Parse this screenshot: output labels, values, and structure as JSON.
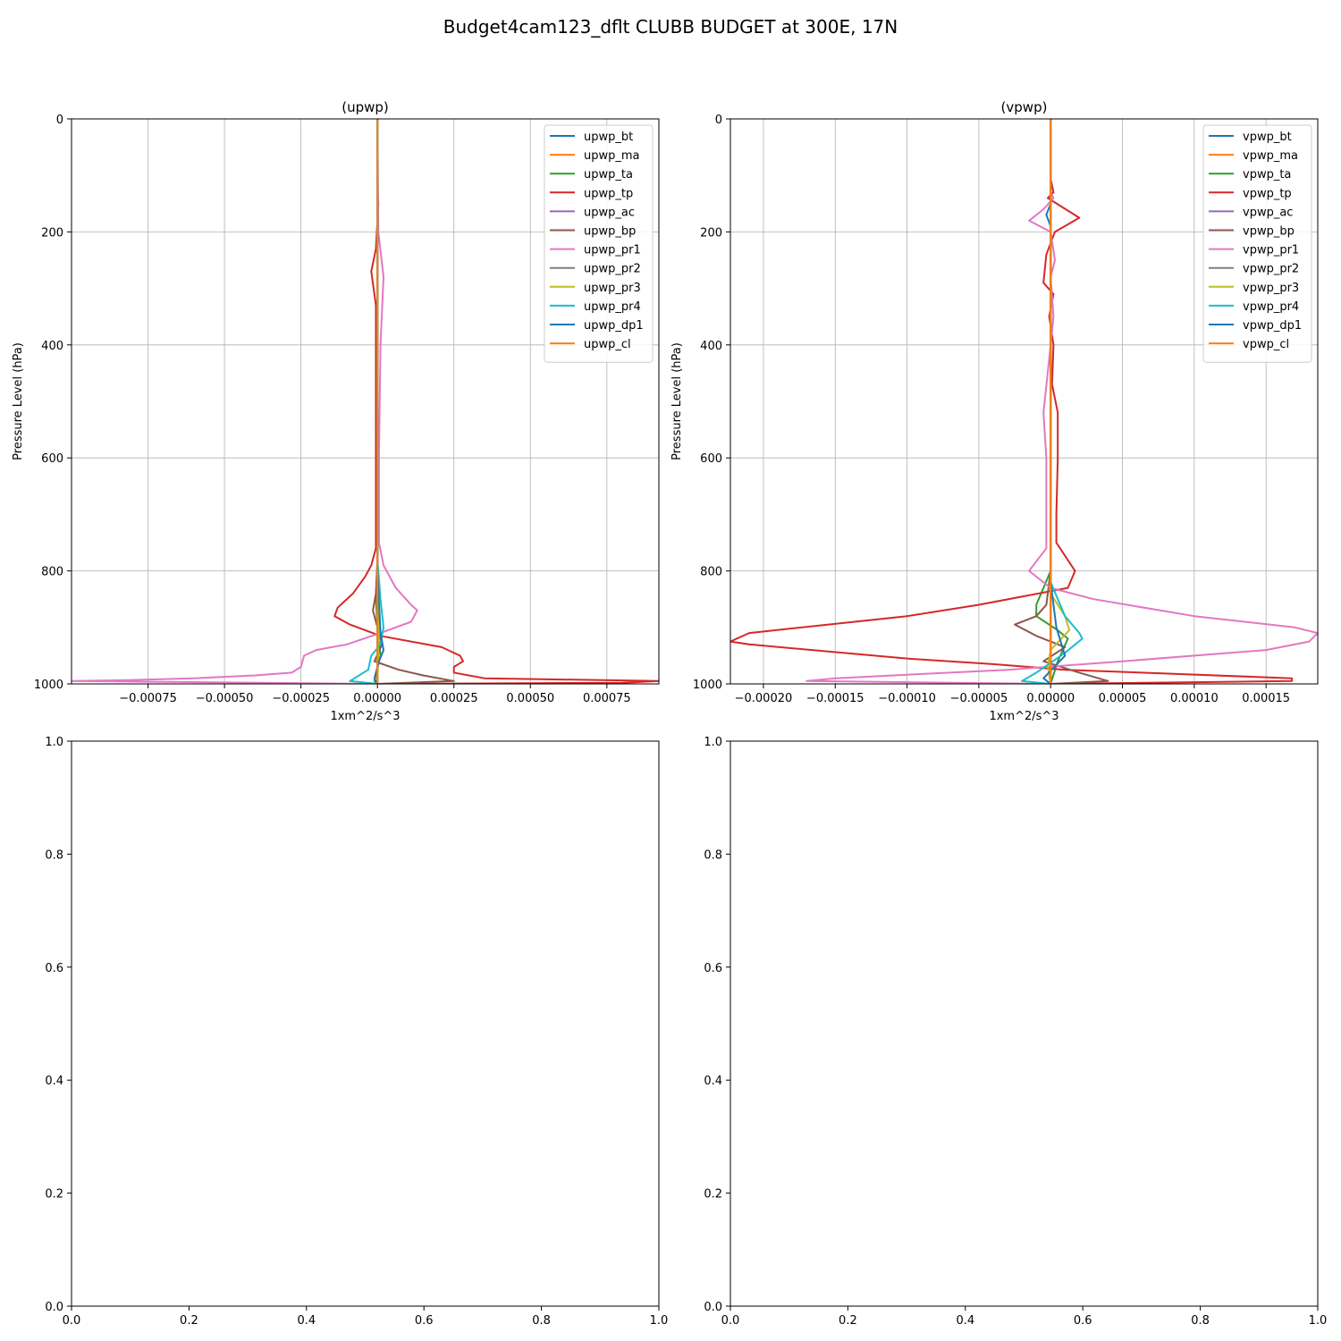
{
  "figure_title": "Budget4cam123_dflt CLUBB BUDGET at 300E, 17N",
  "colors": [
    "#1f77b4",
    "#ff7f0e",
    "#2ca02c",
    "#d62728",
    "#9467bd",
    "#8c564b",
    "#e377c2",
    "#7f7f7f",
    "#bcbd22",
    "#17becf",
    "#1f77b4",
    "#ff7f0e"
  ],
  "chart_data": [
    {
      "type": "line",
      "title": "(upwp)",
      "xlabel": "1xm^2/s^3",
      "ylabel": "Pressure Level (hPa)",
      "xlim": [
        -0.001,
        0.00092
      ],
      "ylim": [
        1000,
        0
      ],
      "y_inverted": true,
      "grid": true,
      "legend": "top-right",
      "xticks": [
        -0.00075,
        -0.0005,
        -0.00025,
        0.0,
        0.00025,
        0.0005,
        0.00075
      ],
      "xtick_labels": [
        "−0.00075",
        "−0.00050",
        "−0.00025",
        "0.00000",
        "0.00025",
        "0.00050",
        "0.00075"
      ],
      "yticks": [
        0,
        200,
        400,
        600,
        800,
        1000
      ],
      "ytick_labels": [
        "0",
        "200",
        "400",
        "600",
        "800",
        "1000"
      ],
      "series": [
        {
          "name": "upwp_bt",
          "points": [
            [
              0,
              0
            ],
            [
              0,
              800
            ],
            [
              0,
              1000
            ]
          ]
        },
        {
          "name": "upwp_ma",
          "points": [
            [
              0,
              0
            ],
            [
              0,
              1000
            ]
          ]
        },
        {
          "name": "upwp_ta",
          "points": [
            [
              0,
              0
            ],
            [
              0,
              780
            ],
            [
              -5e-06,
              850
            ],
            [
              0,
              900
            ],
            [
              1e-05,
              950
            ],
            [
              -1e-05,
              995
            ],
            [
              0,
              1000
            ]
          ]
        },
        {
          "name": "upwp_tp",
          "points": [
            [
              0,
              0
            ],
            [
              0,
              130
            ],
            [
              3e-06,
              150
            ],
            [
              -5e-06,
              230
            ],
            [
              -2e-05,
              270
            ],
            [
              -5e-06,
              330
            ],
            [
              -5e-06,
              600
            ],
            [
              -5e-06,
              760
            ],
            [
              -2e-05,
              790
            ],
            [
              -4e-05,
              810
            ],
            [
              -8e-05,
              840
            ],
            [
              -0.00013,
              865
            ],
            [
              -0.00014,
              880
            ],
            [
              -9e-05,
              895
            ],
            [
              1e-05,
              915
            ],
            [
              0.00021,
              935
            ],
            [
              0.00027,
              950
            ],
            [
              0.00028,
              960
            ],
            [
              0.00025,
              970
            ],
            [
              0.00025,
              980
            ],
            [
              0.00035,
              990
            ],
            [
              0.00092,
              995
            ],
            [
              0.0008,
              998
            ],
            [
              0,
              1000
            ]
          ]
        },
        {
          "name": "upwp_ac",
          "points": [
            [
              0,
              0
            ],
            [
              0,
              1000
            ]
          ]
        },
        {
          "name": "upwp_bp",
          "points": [
            [
              0,
              0
            ],
            [
              0,
              780
            ],
            [
              -5e-06,
              840
            ],
            [
              -1.5e-05,
              870
            ],
            [
              0,
              900
            ],
            [
              1.5e-05,
              930
            ],
            [
              -1e-05,
              960
            ],
            [
              7e-05,
              975
            ],
            [
              0.00015,
              985
            ],
            [
              0.00025,
              995
            ],
            [
              0,
              1000
            ]
          ]
        },
        {
          "name": "upwp_pr1",
          "points": [
            [
              0,
              0
            ],
            [
              3e-06,
              200
            ],
            [
              2e-05,
              280
            ],
            [
              1e-05,
              400
            ],
            [
              5e-06,
              600
            ],
            [
              5e-06,
              750
            ],
            [
              2e-05,
              790
            ],
            [
              6e-05,
              830
            ],
            [
              0.00011,
              860
            ],
            [
              0.00013,
              870
            ],
            [
              0.00011,
              890
            ],
            [
              1e-05,
              910
            ],
            [
              -0.0001,
              930
            ],
            [
              -0.0002,
              940
            ],
            [
              -0.00024,
              950
            ],
            [
              -0.00025,
              970
            ],
            [
              -0.00028,
              980
            ],
            [
              -0.0004,
              985
            ],
            [
              -0.0006,
              990
            ],
            [
              -0.0008,
              993
            ],
            [
              -0.001,
              995
            ],
            [
              0,
              1000
            ]
          ]
        },
        {
          "name": "upwp_pr2",
          "points": [
            [
              0,
              0
            ],
            [
              0,
              1000
            ]
          ]
        },
        {
          "name": "upwp_pr3",
          "points": [
            [
              0,
              0
            ],
            [
              0,
              800
            ],
            [
              5e-06,
              900
            ],
            [
              0,
              1000
            ]
          ]
        },
        {
          "name": "upwp_pr4",
          "points": [
            [
              0,
              0
            ],
            [
              0,
              780
            ],
            [
              1e-05,
              850
            ],
            [
              2e-05,
              900
            ],
            [
              1e-05,
              930
            ],
            [
              -2e-05,
              950
            ],
            [
              -3e-05,
              975
            ],
            [
              -9e-05,
              995
            ],
            [
              0,
              1000
            ]
          ]
        },
        {
          "name": "upwp_dp1",
          "points": [
            [
              0,
              0
            ],
            [
              0,
              800
            ],
            [
              1e-05,
              910
            ],
            [
              2e-05,
              940
            ],
            [
              5e-06,
              960
            ],
            [
              -1e-05,
              990
            ],
            [
              0,
              1000
            ]
          ]
        },
        {
          "name": "upwp_cl",
          "points": [
            [
              0,
              0
            ],
            [
              0,
              1000
            ]
          ]
        }
      ]
    },
    {
      "type": "line",
      "title": "(vpwp)",
      "xlabel": "1xm^2/s^3",
      "ylabel": "Pressure Level (hPa)",
      "xlim": [
        -0.000223,
        0.000186
      ],
      "ylim": [
        1000,
        0
      ],
      "y_inverted": true,
      "grid": true,
      "legend": "top-right",
      "xticks": [
        -0.0002,
        -0.00015,
        -0.0001,
        -5e-05,
        0.0,
        5e-05,
        0.0001,
        0.00015
      ],
      "xtick_labels": [
        "−0.00020",
        "−0.00015",
        "−0.00010",
        "−0.00005",
        "0.00000",
        "0.00005",
        "0.00010",
        "0.00015"
      ],
      "yticks": [
        0,
        200,
        400,
        600,
        800,
        1000
      ],
      "ytick_labels": [
        "0",
        "200",
        "400",
        "600",
        "800",
        "1000"
      ],
      "series": [
        {
          "name": "vpwp_bt",
          "points": [
            [
              0,
              0
            ],
            [
              0,
              150
            ],
            [
              -3e-06,
              170
            ],
            [
              0,
              190
            ],
            [
              0,
              1000
            ]
          ]
        },
        {
          "name": "vpwp_ma",
          "points": [
            [
              0,
              0
            ],
            [
              0,
              1000
            ]
          ]
        },
        {
          "name": "vpwp_ta",
          "points": [
            [
              0,
              0
            ],
            [
              0,
              800
            ],
            [
              -1e-05,
              860
            ],
            [
              -1e-05,
              880
            ],
            [
              5e-06,
              905
            ],
            [
              1.2e-05,
              920
            ],
            [
              5e-06,
              960
            ],
            [
              0,
              1000
            ]
          ]
        },
        {
          "name": "vpwp_tp",
          "points": [
            [
              0,
              0
            ],
            [
              0,
              105
            ],
            [
              2e-06,
              130
            ],
            [
              -2e-06,
              140
            ],
            [
              2e-05,
              175
            ],
            [
              3e-06,
              200
            ],
            [
              -3e-06,
              240
            ],
            [
              -5e-06,
              290
            ],
            [
              2e-06,
              310
            ],
            [
              -1e-06,
              350
            ],
            [
              2e-06,
              400
            ],
            [
              1e-06,
              470
            ],
            [
              5e-06,
              520
            ],
            [
              5e-06,
              600
            ],
            [
              4e-06,
              700
            ],
            [
              4e-06,
              750
            ],
            [
              1.7e-05,
              800
            ],
            [
              1.2e-05,
              830
            ],
            [
              -5e-05,
              860
            ],
            [
              -0.0001,
              880
            ],
            [
              -0.00021,
              910
            ],
            [
              -0.000223,
              925
            ],
            [
              -0.00021,
              930
            ],
            [
              -0.0001,
              955
            ],
            [
              -4e-05,
              965
            ],
            [
              1e-05,
              975
            ],
            [
              0.000168,
              990
            ],
            [
              0.000168,
              995
            ],
            [
              0,
              1000
            ]
          ]
        },
        {
          "name": "vpwp_ac",
          "points": [
            [
              0,
              0
            ],
            [
              0,
              1000
            ]
          ]
        },
        {
          "name": "vpwp_bp",
          "points": [
            [
              0,
              0
            ],
            [
              0,
              800
            ],
            [
              -3e-06,
              860
            ],
            [
              -1e-05,
              880
            ],
            [
              -2.5e-05,
              895
            ],
            [
              -1e-05,
              915
            ],
            [
              1e-05,
              935
            ],
            [
              -5e-06,
              960
            ],
            [
              2e-05,
              980
            ],
            [
              4e-05,
              995
            ],
            [
              0,
              1000
            ]
          ]
        },
        {
          "name": "vpwp_pr1",
          "points": [
            [
              0,
              0
            ],
            [
              0,
              130
            ],
            [
              2e-06,
              140
            ],
            [
              -5e-06,
              160
            ],
            [
              -1.5e-05,
              180
            ],
            [
              0,
              200
            ],
            [
              3e-06,
              250
            ],
            [
              0,
              280
            ],
            [
              2e-06,
              350
            ],
            [
              0,
              400
            ],
            [
              -5e-06,
              520
            ],
            [
              -3e-06,
              600
            ],
            [
              -3e-06,
              700
            ],
            [
              -3e-06,
              760
            ],
            [
              -1.5e-05,
              800
            ],
            [
              0,
              830
            ],
            [
              3e-05,
              850
            ],
            [
              0.0001,
              880
            ],
            [
              0.00017,
              900
            ],
            [
              0.000186,
              910
            ],
            [
              0.00018,
              925
            ],
            [
              0.00015,
              940
            ],
            [
              5e-05,
              960
            ],
            [
              -3e-05,
              975
            ],
            [
              -0.00015,
              990
            ],
            [
              -0.00017,
              995
            ],
            [
              0,
              1000
            ]
          ]
        },
        {
          "name": "vpwp_pr2",
          "points": [
            [
              0,
              0
            ],
            [
              0,
              1000
            ]
          ]
        },
        {
          "name": "vpwp_pr3",
          "points": [
            [
              0,
              0
            ],
            [
              0,
              840
            ],
            [
              1e-05,
              880
            ],
            [
              1.3e-05,
              905
            ],
            [
              0,
              940
            ],
            [
              -2e-06,
              970
            ],
            [
              0,
              1000
            ]
          ]
        },
        {
          "name": "vpwp_pr4",
          "points": [
            [
              0,
              0
            ],
            [
              0,
              820
            ],
            [
              1e-05,
              880
            ],
            [
              2e-05,
              910
            ],
            [
              2.2e-05,
              920
            ],
            [
              1e-05,
              945
            ],
            [
              -1e-05,
              980
            ],
            [
              -2e-05,
              995
            ],
            [
              0,
              1000
            ]
          ]
        },
        {
          "name": "vpwp_dp1",
          "points": [
            [
              0,
              0
            ],
            [
              0,
              820
            ],
            [
              4e-06,
              900
            ],
            [
              1e-05,
              950
            ],
            [
              -5e-06,
              990
            ],
            [
              0,
              1000
            ]
          ]
        },
        {
          "name": "vpwp_cl",
          "points": [
            [
              0,
              0
            ],
            [
              0,
              1000
            ]
          ]
        }
      ]
    },
    {
      "type": "line",
      "title": "",
      "xlabel": "",
      "ylabel": "",
      "xlim": [
        0,
        1
      ],
      "ylim": [
        0,
        1
      ],
      "y_inverted": false,
      "grid": false,
      "xticks": [
        0.0,
        0.2,
        0.4,
        0.6,
        0.8,
        1.0
      ],
      "xtick_labels": [
        "0.0",
        "0.2",
        "0.4",
        "0.6",
        "0.8",
        "1.0"
      ],
      "yticks": [
        0.0,
        0.2,
        0.4,
        0.6,
        0.8,
        1.0
      ],
      "ytick_labels": [
        "0.0",
        "0.2",
        "0.4",
        "0.6",
        "0.8",
        "1.0"
      ],
      "series": []
    },
    {
      "type": "line",
      "title": "",
      "xlabel": "",
      "ylabel": "",
      "xlim": [
        0,
        1
      ],
      "ylim": [
        0,
        1
      ],
      "y_inverted": false,
      "grid": false,
      "xticks": [
        0.0,
        0.2,
        0.4,
        0.6,
        0.8,
        1.0
      ],
      "xtick_labels": [
        "0.0",
        "0.2",
        "0.4",
        "0.6",
        "0.8",
        "1.0"
      ],
      "yticks": [
        0.0,
        0.2,
        0.4,
        0.6,
        0.8,
        1.0
      ],
      "ytick_labels": [
        "0.0",
        "0.2",
        "0.4",
        "0.6",
        "0.8",
        "1.0"
      ],
      "series": []
    }
  ]
}
